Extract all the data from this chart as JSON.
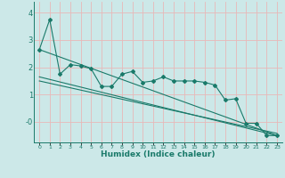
{
  "xlabel": "Humidex (Indice chaleur)",
  "ylabel": "",
  "xlim": [
    -0.5,
    23.5
  ],
  "ylim": [
    -0.75,
    4.4
  ],
  "yticks": [
    4,
    3,
    2,
    1,
    0
  ],
  "ytick_labels": [
    "4",
    "3",
    "2",
    "1",
    "-0"
  ],
  "xticks": [
    0,
    1,
    2,
    3,
    4,
    5,
    6,
    7,
    8,
    9,
    10,
    11,
    12,
    13,
    14,
    15,
    16,
    17,
    18,
    19,
    20,
    21,
    22,
    23
  ],
  "background_color": "#cce8e8",
  "grid_color": "#e8b8b8",
  "line_color": "#1a7a6a",
  "line1_x": [
    0,
    1,
    2,
    3,
    4,
    5,
    6,
    7,
    8,
    9,
    10,
    11,
    12,
    13,
    14,
    15,
    16,
    17,
    18,
    19,
    20,
    21,
    22,
    23
  ],
  "line1_y": [
    2.65,
    3.75,
    1.75,
    2.1,
    2.05,
    1.95,
    1.3,
    1.3,
    1.75,
    1.85,
    1.45,
    1.5,
    1.65,
    1.5,
    1.5,
    1.5,
    1.45,
    1.35,
    0.8,
    0.85,
    -0.05,
    -0.05,
    -0.5,
    -0.5
  ],
  "line2_x": [
    0,
    23
  ],
  "line2_y": [
    2.65,
    -0.5
  ],
  "line3_x": [
    0,
    23
  ],
  "line3_y": [
    1.65,
    -0.5
  ],
  "line4_x": [
    0,
    23
  ],
  "line4_y": [
    1.5,
    -0.42
  ]
}
